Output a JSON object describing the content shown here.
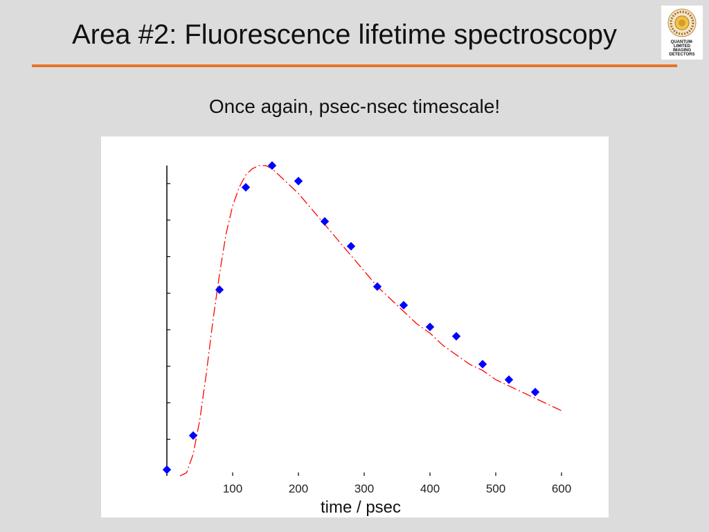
{
  "slide": {
    "title": "Area #2: Fluorescence lifetime spectroscopy",
    "subtitle": "Once again, psec-nsec timescale!",
    "accent_color": "#e8722a",
    "logo": {
      "lines": [
        "QUANTUM-",
        "LIMITED",
        "IMAGING",
        "DETECTORS"
      ]
    }
  },
  "chart_data": {
    "type": "scatter",
    "title": "",
    "xlabel": "time / psec",
    "ylabel": "",
    "xlim": [
      0,
      600
    ],
    "ylim": [
      0,
      1
    ],
    "x_ticks": [
      100,
      200,
      300,
      400,
      500,
      600
    ],
    "y_tick_count": 8,
    "grid": false,
    "series": [
      {
        "kind": "points",
        "color": "#0000ff",
        "x": [
          0,
          40,
          80,
          120,
          160,
          200,
          240,
          280,
          320,
          360,
          400,
          440,
          480,
          520,
          560
        ],
        "y": [
          0.02,
          0.13,
          0.6,
          0.93,
          1.0,
          0.95,
          0.82,
          0.74,
          0.61,
          0.55,
          0.48,
          0.45,
          0.36,
          0.31,
          0.27
        ]
      },
      {
        "kind": "fit",
        "color": "#ff0000",
        "style": "dash-dot",
        "x": [
          20,
          30,
          40,
          50,
          60,
          70,
          80,
          90,
          100,
          110,
          120,
          130,
          140,
          150,
          160,
          170,
          180,
          190,
          200,
          220,
          240,
          260,
          280,
          300,
          320,
          340,
          360,
          380,
          400,
          420,
          440,
          460,
          480,
          500,
          520,
          540,
          560,
          580,
          600
        ],
        "y": [
          0.0,
          0.01,
          0.07,
          0.18,
          0.33,
          0.5,
          0.65,
          0.78,
          0.87,
          0.93,
          0.97,
          0.99,
          1.0,
          1.0,
          0.99,
          0.97,
          0.95,
          0.93,
          0.91,
          0.86,
          0.81,
          0.76,
          0.71,
          0.66,
          0.61,
          0.57,
          0.53,
          0.49,
          0.46,
          0.42,
          0.39,
          0.36,
          0.34,
          0.31,
          0.29,
          0.27,
          0.25,
          0.23,
          0.21
        ]
      }
    ]
  }
}
